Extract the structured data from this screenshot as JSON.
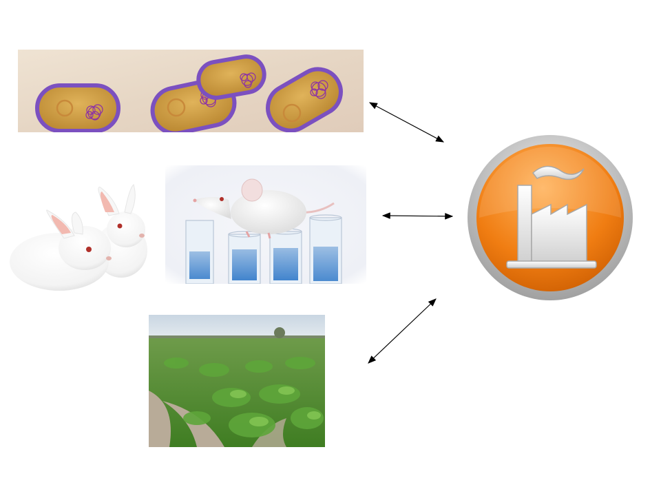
{
  "colors": {
    "bacteria_background": "#e9dccd",
    "bacteria_cell_fill": "#c99a3e",
    "bacteria_cell_wall": "#7b50c0",
    "plasmid": "#c8893a",
    "chromosome": "#8a2ea8",
    "rabbit_fur": "#ffffff",
    "rabbit_ear": "#f2b9b0",
    "mouse_test_tube_liquid": "#2f78c8",
    "field_sky": "#d9e2ea",
    "field_leaves": "#4d8a2a",
    "field_soil": "#b8ab98",
    "factory_badge": "#f07d12",
    "factory_ring": "#b8b8b8",
    "factory_symbol": "#f2f2f2",
    "arrow": "#000000"
  },
  "diagram": {
    "items": [
      {
        "id": "bacteria",
        "icon": "bacteria-cells-with-plasmids"
      },
      {
        "id": "rabbits",
        "icon": "white-rabbits"
      },
      {
        "id": "mouse",
        "icon": "lab-mouse-on-test-tubes"
      },
      {
        "id": "field",
        "icon": "crop-field-plants"
      },
      {
        "id": "factory",
        "icon": "factory-icon"
      }
    ],
    "connections": [
      {
        "from": "bacteria",
        "to": "factory",
        "type": "bidirectional"
      },
      {
        "from": "mouse",
        "to": "factory",
        "type": "bidirectional"
      },
      {
        "from": "field",
        "to": "factory",
        "type": "bidirectional"
      }
    ]
  }
}
